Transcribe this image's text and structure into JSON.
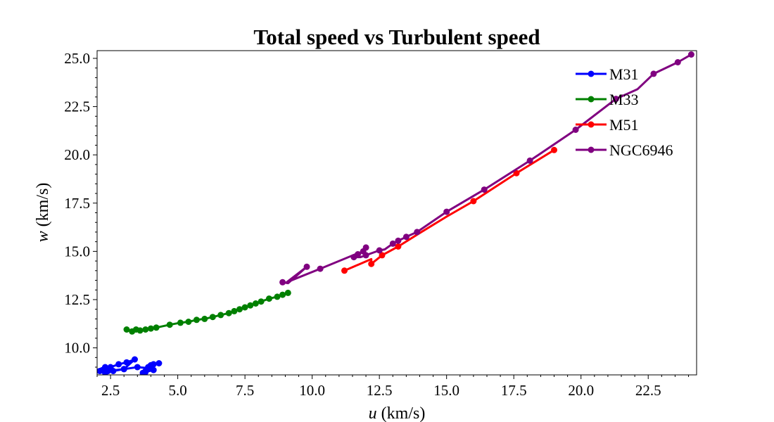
{
  "chart_data": {
    "type": "line",
    "title": "Total speed vs Turbulent speed",
    "xlabel_var": "u",
    "xlabel_unit": " (km/s)",
    "ylabel_var": "w",
    "ylabel_unit": " (km/s)",
    "xlim": [
      2.0,
      24.3
    ],
    "ylim": [
      8.6,
      25.4
    ],
    "xticks": [
      2.5,
      5.0,
      7.5,
      10.0,
      12.5,
      15.0,
      17.5,
      20.0,
      22.5
    ],
    "yticks": [
      10.0,
      12.5,
      15.0,
      17.5,
      20.0,
      22.5,
      25.0
    ],
    "xtick_labels": [
      "2.5",
      "5.0",
      "7.5",
      "10.0",
      "12.5",
      "15.0",
      "17.5",
      "20.0",
      "22.5"
    ],
    "ytick_labels": [
      "10.0",
      "12.5",
      "15.0",
      "17.5",
      "20.0",
      "22.5",
      "25.0"
    ],
    "legend_position": "upper-right",
    "grid": false,
    "series": [
      {
        "name": "M31",
        "color": "#0000ff",
        "x": [
          2.1,
          2.3,
          2.4,
          2.5,
          2.8,
          3.1,
          3.4,
          3.0,
          2.6,
          2.4,
          2.3,
          2.2,
          2.4,
          3.0,
          3.5,
          3.9,
          4.1,
          3.8,
          3.7,
          3.8,
          3.9,
          4.1,
          4.0,
          4.3
        ],
        "y": [
          8.8,
          9.0,
          8.9,
          9.0,
          9.15,
          9.25,
          9.4,
          8.9,
          8.8,
          8.8,
          8.7,
          8.85,
          8.8,
          8.9,
          9.0,
          8.95,
          8.85,
          8.75,
          8.7,
          8.8,
          9.0,
          9.15,
          9.1,
          9.2
        ]
      },
      {
        "name": "M33",
        "color": "#008000",
        "x": [
          3.1,
          3.3,
          3.45,
          3.6,
          3.8,
          4.0,
          4.2,
          4.7,
          5.1,
          5.4,
          5.7,
          6.0,
          6.3,
          6.6,
          6.9,
          7.1,
          7.3,
          7.5,
          7.7,
          7.9,
          8.1,
          8.4,
          8.7,
          8.9,
          9.1
        ],
        "y": [
          10.95,
          10.85,
          10.95,
          10.9,
          10.95,
          11.0,
          11.05,
          11.2,
          11.3,
          11.35,
          11.45,
          11.5,
          11.6,
          11.7,
          11.8,
          11.9,
          12.0,
          12.1,
          12.2,
          12.3,
          12.4,
          12.55,
          12.65,
          12.75,
          12.85
        ]
      },
      {
        "name": "M51",
        "color": "#ff0000",
        "x": [
          11.2,
          12.2,
          12.2,
          12.6,
          13.2,
          14.0,
          15.0,
          16.0,
          17.6,
          19.0
        ],
        "y": [
          14.0,
          14.6,
          14.35,
          14.8,
          15.25,
          15.95,
          16.8,
          17.6,
          19.05,
          20.25
        ],
        "markers": [
          0,
          2,
          3,
          4,
          7,
          8,
          9
        ]
      },
      {
        "name": "NGC6946",
        "color": "#800080",
        "x": [
          8.9,
          9.1,
          9.8,
          9.05,
          10.3,
          11.7,
          11.55,
          11.5,
          11.7,
          11.9,
          12.0,
          11.6,
          11.8,
          12.0,
          12.2,
          12.5,
          12.7,
          13.0,
          13.2,
          13.5,
          13.9,
          15.0,
          16.4,
          18.1,
          19.8,
          21.3,
          22.1,
          22.7,
          23.6,
          24.1
        ],
        "y": [
          13.4,
          13.35,
          14.2,
          13.4,
          14.1,
          14.9,
          14.7,
          14.65,
          14.85,
          15.0,
          15.2,
          14.7,
          14.7,
          14.8,
          14.9,
          15.05,
          15.1,
          15.4,
          15.55,
          15.75,
          16.0,
          17.05,
          18.2,
          19.7,
          21.3,
          22.9,
          23.4,
          24.2,
          24.8,
          25.2
        ],
        "markers": [
          0,
          2,
          4,
          6,
          8,
          9,
          10,
          13,
          15,
          17,
          18,
          19,
          20,
          21,
          22,
          23,
          24,
          25,
          27,
          28,
          29
        ]
      }
    ]
  }
}
